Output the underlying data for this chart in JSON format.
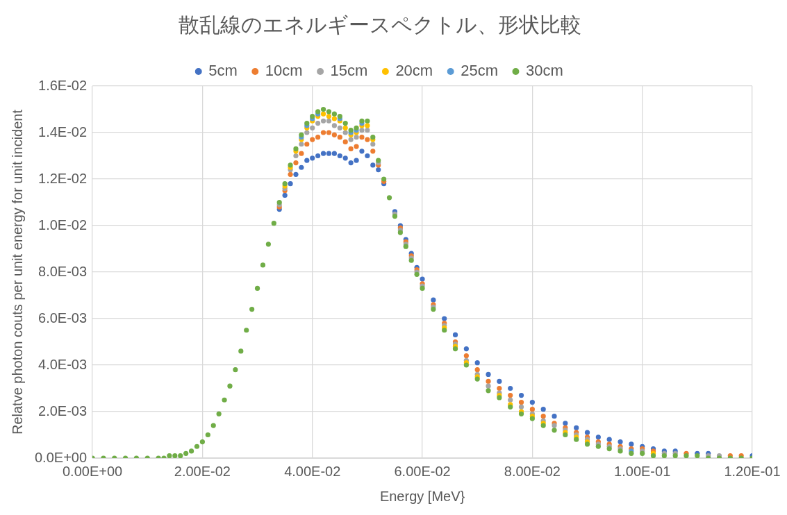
{
  "chart_data": {
    "type": "scatter",
    "title": "散乱線のエネルギースペクトル、形状比較",
    "xlabel": "Energy [MeV}",
    "ylabel": "Relatve photon couts per unit energy for unit incident",
    "x": [
      0,
      0.002,
      0.004,
      0.006,
      0.008,
      0.01,
      0.012,
      0.013,
      0.014,
      0.015,
      0.016,
      0.017,
      0.018,
      0.019,
      0.02,
      0.021,
      0.022,
      0.023,
      0.024,
      0.025,
      0.026,
      0.027,
      0.028,
      0.029,
      0.03,
      0.031,
      0.032,
      0.033,
      0.034,
      0.035,
      0.036,
      0.037,
      0.038,
      0.039,
      0.04,
      0.041,
      0.042,
      0.043,
      0.044,
      0.045,
      0.046,
      0.047,
      0.048,
      0.049,
      0.05,
      0.051,
      0.052,
      0.053,
      0.054,
      0.055,
      0.056,
      0.057,
      0.058,
      0.059,
      0.06,
      0.062,
      0.064,
      0.066,
      0.068,
      0.07,
      0.072,
      0.074,
      0.076,
      0.078,
      0.08,
      0.082,
      0.084,
      0.086,
      0.088,
      0.09,
      0.092,
      0.094,
      0.096,
      0.098,
      0.1,
      0.102,
      0.104,
      0.106,
      0.108,
      0.11,
      0.112,
      0.114,
      0.116,
      0.118,
      0.12
    ],
    "series": [
      {
        "name": "5cm",
        "color": "#4472c4",
        "values": [
          null,
          null,
          null,
          null,
          null,
          null,
          null,
          null,
          null,
          null,
          null,
          null,
          null,
          null,
          null,
          null,
          null,
          null,
          null,
          null,
          null,
          null,
          null,
          null,
          null,
          null,
          null,
          null,
          0.0107,
          0.0113,
          0.0118,
          0.0122,
          0.0125,
          0.0128,
          0.0129,
          0.013,
          0.0131,
          0.0131,
          0.0131,
          0.013,
          0.0129,
          0.0127,
          0.0128,
          0.0132,
          0.013,
          0.0126,
          0.0124,
          0.0118,
          null,
          0.0106,
          0.01,
          0.0094,
          0.0088,
          0.0082,
          0.0077,
          0.0068,
          0.006,
          0.0053,
          0.0047,
          0.0041,
          0.0036,
          0.0033,
          0.003,
          0.0027,
          0.0024,
          0.0021,
          0.0018,
          0.0015,
          0.0013,
          0.0011,
          0.0009,
          0.0008,
          0.0007,
          0.0006,
          0.0005,
          0.0004,
          0.0003,
          0.0003,
          null,
          0.0002,
          0.0002,
          null,
          null,
          null,
          0.0001
        ]
      },
      {
        "name": "10cm",
        "color": "#ed7d31",
        "values": [
          null,
          null,
          null,
          null,
          null,
          null,
          null,
          null,
          null,
          null,
          null,
          null,
          null,
          null,
          null,
          null,
          null,
          null,
          null,
          null,
          null,
          null,
          null,
          null,
          null,
          null,
          null,
          null,
          0.0108,
          0.0115,
          0.0122,
          0.0127,
          0.0131,
          0.0135,
          0.0137,
          0.0138,
          0.014,
          0.014,
          0.0139,
          0.0138,
          0.0136,
          0.0133,
          0.0134,
          0.0138,
          0.0137,
          0.0132,
          0.0126,
          0.0119,
          null,
          null,
          0.0099,
          0.0093,
          0.0087,
          0.0081,
          0.0075,
          0.0066,
          0.0058,
          0.005,
          0.0044,
          0.0038,
          0.0033,
          0.003,
          0.0027,
          0.0024,
          0.0021,
          0.0018,
          0.0015,
          0.0013,
          0.0011,
          0.0009,
          0.0007,
          0.0006,
          0.0005,
          0.0004,
          0.0004,
          0.0003,
          null,
          null,
          0.0002,
          null,
          null,
          null,
          0.0001,
          0.0001,
          null
        ]
      },
      {
        "name": "15cm",
        "color": "#a5a5a5",
        "values": [
          null,
          null,
          null,
          null,
          null,
          null,
          null,
          null,
          null,
          null,
          null,
          null,
          null,
          null,
          null,
          null,
          null,
          null,
          null,
          null,
          null,
          null,
          null,
          null,
          null,
          null,
          null,
          null,
          0.0109,
          0.0116,
          0.0124,
          0.013,
          0.0135,
          0.014,
          0.0142,
          0.0144,
          0.0145,
          0.0145,
          0.0143,
          0.0142,
          0.014,
          0.0137,
          0.0138,
          0.0141,
          0.0141,
          0.0135,
          0.0127,
          null,
          null,
          0.0105,
          0.0098,
          0.0092,
          0.0086,
          0.008,
          0.0074,
          0.0065,
          0.0057,
          0.0049,
          0.0042,
          0.0036,
          0.0031,
          0.0028,
          0.0025,
          0.0022,
          0.0019,
          0.0016,
          0.0014,
          0.0012,
          0.001,
          0.0008,
          0.0006,
          0.0005,
          0.0004,
          null,
          0.0003,
          null,
          0.0002,
          0.0002,
          null,
          null,
          0.0001,
          0.0001,
          null,
          null,
          null
        ]
      },
      {
        "name": "20cm",
        "color": "#ffc000",
        "values": [
          null,
          null,
          null,
          null,
          null,
          null,
          null,
          null,
          null,
          null,
          null,
          null,
          null,
          null,
          null,
          null,
          null,
          null,
          null,
          null,
          null,
          null,
          null,
          null,
          null,
          null,
          null,
          null,
          null,
          0.0117,
          0.0125,
          0.0132,
          0.0137,
          0.0142,
          0.0145,
          0.0147,
          0.0148,
          0.0147,
          0.0146,
          0.0145,
          0.0142,
          0.0139,
          0.014,
          0.0143,
          0.0143,
          0.0137,
          null,
          null,
          null,
          null,
          null,
          null,
          null,
          null,
          null,
          null,
          0.0056,
          0.0048,
          0.0041,
          0.0035,
          null,
          0.0027,
          0.0023,
          0.002,
          0.0018,
          0.0015,
          null,
          0.0011,
          0.0009,
          0.0007,
          null,
          null,
          null,
          null,
          null,
          0.0002,
          null,
          null,
          null,
          null,
          null,
          null,
          null,
          null,
          null
        ]
      },
      {
        "name": "25cm",
        "color": "#5b9bd5",
        "values": [
          null,
          null,
          null,
          null,
          null,
          null,
          null,
          null,
          null,
          null,
          null,
          null,
          null,
          null,
          null,
          null,
          null,
          null,
          null,
          null,
          null,
          null,
          null,
          null,
          null,
          null,
          null,
          null,
          null,
          null,
          null,
          null,
          0.0138,
          0.0143,
          0.0146,
          0.0148,
          null,
          null,
          null,
          0.0146,
          null,
          0.014,
          0.0141,
          0.0144,
          null,
          null,
          null,
          null,
          null,
          null,
          null,
          null,
          null,
          null,
          null,
          null,
          null,
          null,
          null,
          null,
          null,
          null,
          null,
          null,
          null,
          null,
          null,
          null,
          null,
          null,
          null,
          null,
          null,
          0.0003,
          null,
          null,
          null,
          null,
          null,
          null,
          null,
          null,
          null,
          null,
          null
        ]
      },
      {
        "name": "30cm",
        "color": "#70ad47",
        "values": [
          0,
          0,
          0,
          0,
          0,
          0,
          0,
          0,
          0.0001,
          0.0001,
          0.0001,
          0.0002,
          0.0003,
          0.0005,
          0.0007,
          0.001,
          0.0014,
          0.0019,
          0.0025,
          0.0031,
          0.0038,
          0.0046,
          0.0055,
          0.0064,
          0.0073,
          0.0083,
          0.0092,
          0.0101,
          0.011,
          0.0118,
          0.0126,
          0.0133,
          0.0139,
          0.0144,
          0.0147,
          0.0149,
          0.015,
          0.0149,
          0.0148,
          0.0147,
          0.0144,
          0.0141,
          0.0142,
          0.0145,
          0.0145,
          0.0138,
          0.0128,
          0.012,
          0.0112,
          0.0104,
          0.0097,
          0.0091,
          0.0085,
          0.0079,
          0.0073,
          0.0064,
          0.0055,
          0.0047,
          0.004,
          0.0034,
          0.0029,
          0.0026,
          0.0022,
          0.0019,
          0.0017,
          0.0014,
          0.0012,
          0.001,
          0.0008,
          0.0006,
          0.0005,
          0.0004,
          0.0003,
          0.0002,
          0.0002,
          0.0001,
          0.0001,
          0.0001,
          0.0001,
          0.0001,
          0,
          0,
          0,
          0,
          0
        ]
      }
    ],
    "xlim": [
      0,
      0.12
    ],
    "xticks": [
      {
        "value": 0,
        "label": "0.00E+00"
      },
      {
        "value": 0.02,
        "label": "2.00E-02"
      },
      {
        "value": 0.04,
        "label": "4.00E-02"
      },
      {
        "value": 0.06,
        "label": "6.00E-02"
      },
      {
        "value": 0.08,
        "label": "8.00E-02"
      },
      {
        "value": 0.1,
        "label": "1.00E-01"
      },
      {
        "value": 0.12,
        "label": "1.20E-01"
      }
    ],
    "ylim": [
      0,
      0.016
    ],
    "yticks": [
      {
        "value": 0,
        "label": "0.0E+00"
      },
      {
        "value": 0.002,
        "label": "2.0E-03"
      },
      {
        "value": 0.004,
        "label": "4.0E-03"
      },
      {
        "value": 0.006,
        "label": "6.0E-03"
      },
      {
        "value": 0.008,
        "label": "8.0E-03"
      },
      {
        "value": 0.01,
        "label": "1.0E-02"
      },
      {
        "value": 0.012,
        "label": "1.2E-02"
      },
      {
        "value": 0.014,
        "label": "1.4E-02"
      },
      {
        "value": 0.016,
        "label": "1.6E-02"
      }
    ],
    "grid": true,
    "legend": "top",
    "marker": "circle"
  }
}
